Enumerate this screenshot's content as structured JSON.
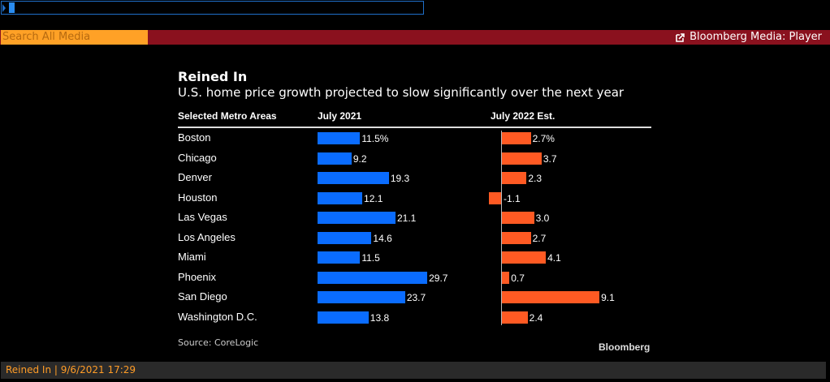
{
  "command_line": {
    "value": ""
  },
  "toolbar": {
    "search_placeholder": "Search All Media",
    "player_label": "Bloomberg Media: Player",
    "player_icon": "external-link-icon",
    "bar_color": "#8a111e",
    "search_color": "#ffa126"
  },
  "chart_data": {
    "type": "bar",
    "title": "Reined In",
    "subtitle": "U.S. home price growth projected to slow significantly over the next year",
    "column_headers": [
      "Selected Metro Areas",
      "July 2021",
      "July 2022 Est."
    ],
    "categories": [
      "Boston",
      "Chicago",
      "Denver",
      "Houston",
      "Las Vegas",
      "Los Angeles",
      "Miami",
      "Phoenix",
      "San Diego",
      "Washington D.C."
    ],
    "series": [
      {
        "name": "July 2021",
        "color": "#0a6cff",
        "values": [
          11.5,
          9.2,
          19.3,
          12.1,
          21.1,
          14.6,
          11.5,
          29.7,
          23.7,
          13.8
        ],
        "labels": [
          "11.5%",
          "9.2",
          "19.3",
          "12.1",
          "21.1",
          "14.6",
          "11.5",
          "29.7",
          "23.7",
          "13.8"
        ]
      },
      {
        "name": "July 2022 Est.",
        "color": "#ff5a23",
        "values": [
          2.7,
          3.7,
          2.3,
          -1.1,
          3.0,
          2.7,
          4.1,
          0.7,
          9.1,
          2.4
        ],
        "labels": [
          "2.7%",
          "3.7",
          "2.3",
          "-1.1",
          "3.0",
          "2.7",
          "4.1",
          "0.7",
          "9.1",
          "2.4"
        ]
      }
    ],
    "unit": "%",
    "source": "Source: CoreLogic",
    "brand": "Bloomberg"
  },
  "status_bar": {
    "text": "Reined In | 9/6/2021 17:29"
  }
}
